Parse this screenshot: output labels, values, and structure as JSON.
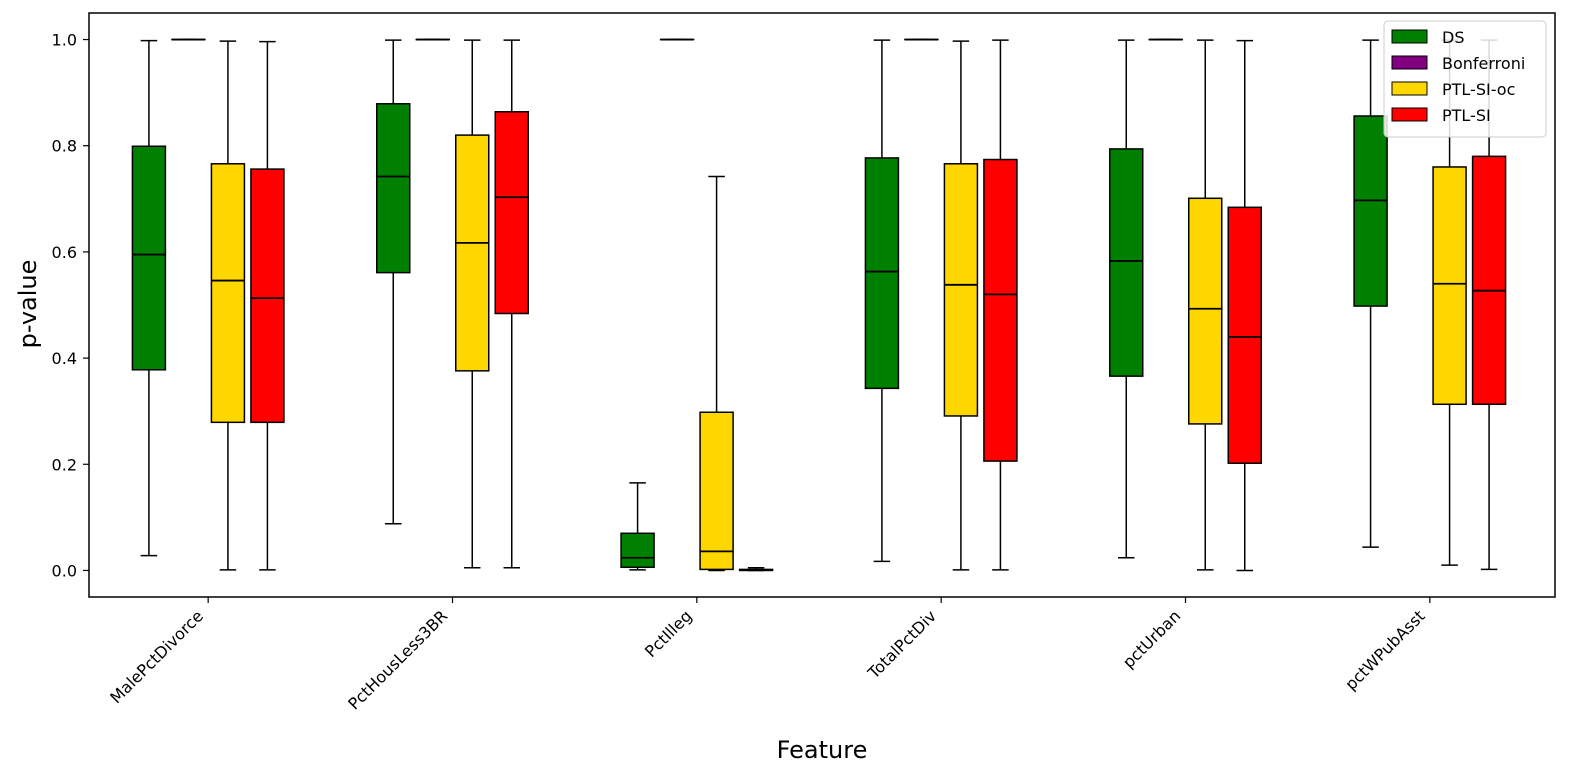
{
  "chart_data": {
    "type": "boxplot",
    "title": "",
    "xlabel": "Feature",
    "ylabel": "p-value",
    "ylim": [
      -0.05,
      1.05
    ],
    "yticks": [
      0.0,
      0.2,
      0.4,
      0.6,
      0.8,
      1.0
    ],
    "ytick_labels": [
      "0.0",
      "0.2",
      "0.4",
      "0.6",
      "0.8",
      "1.0"
    ],
    "categories": [
      "MalePctDivorce",
      "PctHousLess3BR",
      "PctIlleg",
      "TotalPctDiv",
      "pctUrban",
      "pctWPubAsst"
    ],
    "legend_position": "top-right",
    "series": [
      {
        "name": "DS",
        "color": "#008000",
        "boxes": [
          {
            "whislo": 0.028,
            "q1": 0.378,
            "med": 0.595,
            "q3": 0.799,
            "whishi": 0.998
          },
          {
            "whislo": 0.088,
            "q1": 0.561,
            "med": 0.742,
            "q3": 0.879,
            "whishi": 0.999
          },
          {
            "whislo": 0.001,
            "q1": 0.006,
            "med": 0.024,
            "q3": 0.07,
            "whishi": 0.165
          },
          {
            "whislo": 0.017,
            "q1": 0.343,
            "med": 0.563,
            "q3": 0.777,
            "whishi": 0.999
          },
          {
            "whislo": 0.024,
            "q1": 0.366,
            "med": 0.583,
            "q3": 0.794,
            "whishi": 0.999
          },
          {
            "whislo": 0.044,
            "q1": 0.498,
            "med": 0.697,
            "q3": 0.856,
            "whishi": 0.999
          }
        ]
      },
      {
        "name": "Bonferroni",
        "color": "#800080",
        "boxes": [
          {
            "whislo": 1.0,
            "q1": 1.0,
            "med": 1.0,
            "q3": 1.0,
            "whishi": 1.0
          },
          {
            "whislo": 1.0,
            "q1": 1.0,
            "med": 1.0,
            "q3": 1.0,
            "whishi": 1.0
          },
          {
            "whislo": 1.0,
            "q1": 1.0,
            "med": 1.0,
            "q3": 1.0,
            "whishi": 1.0
          },
          {
            "whislo": 1.0,
            "q1": 1.0,
            "med": 1.0,
            "q3": 1.0,
            "whishi": 1.0
          },
          {
            "whislo": 1.0,
            "q1": 1.0,
            "med": 1.0,
            "q3": 1.0,
            "whishi": 1.0
          },
          {
            "whislo": 1.0,
            "q1": 1.0,
            "med": 1.0,
            "q3": 1.0,
            "whishi": 1.0
          }
        ]
      },
      {
        "name": "PTL-SI-oc",
        "color": "#FFD700",
        "boxes": [
          {
            "whislo": 0.001,
            "q1": 0.279,
            "med": 0.546,
            "q3": 0.766,
            "whishi": 0.997
          },
          {
            "whislo": 0.005,
            "q1": 0.376,
            "med": 0.617,
            "q3": 0.82,
            "whishi": 0.999
          },
          {
            "whislo": 0.0,
            "q1": 0.002,
            "med": 0.036,
            "q3": 0.298,
            "whishi": 0.742
          },
          {
            "whislo": 0.001,
            "q1": 0.291,
            "med": 0.538,
            "q3": 0.766,
            "whishi": 0.997
          },
          {
            "whislo": 0.001,
            "q1": 0.276,
            "med": 0.493,
            "q3": 0.701,
            "whishi": 0.999
          },
          {
            "whislo": 0.01,
            "q1": 0.313,
            "med": 0.54,
            "q3": 0.76,
            "whishi": 0.999
          }
        ]
      },
      {
        "name": "PTL-SI",
        "color": "#FF0000",
        "boxes": [
          {
            "whislo": 0.001,
            "q1": 0.279,
            "med": 0.513,
            "q3": 0.756,
            "whishi": 0.996
          },
          {
            "whislo": 0.005,
            "q1": 0.484,
            "med": 0.703,
            "q3": 0.864,
            "whishi": 0.999
          },
          {
            "whislo": 0.0,
            "q1": 0.0,
            "med": 0.001,
            "q3": 0.002,
            "whishi": 0.005
          },
          {
            "whislo": 0.001,
            "q1": 0.206,
            "med": 0.52,
            "q3": 0.774,
            "whishi": 0.999
          },
          {
            "whislo": 0.0,
            "q1": 0.202,
            "med": 0.44,
            "q3": 0.684,
            "whishi": 0.998
          },
          {
            "whislo": 0.002,
            "q1": 0.313,
            "med": 0.527,
            "q3": 0.78,
            "whishi": 0.999
          }
        ]
      }
    ]
  }
}
